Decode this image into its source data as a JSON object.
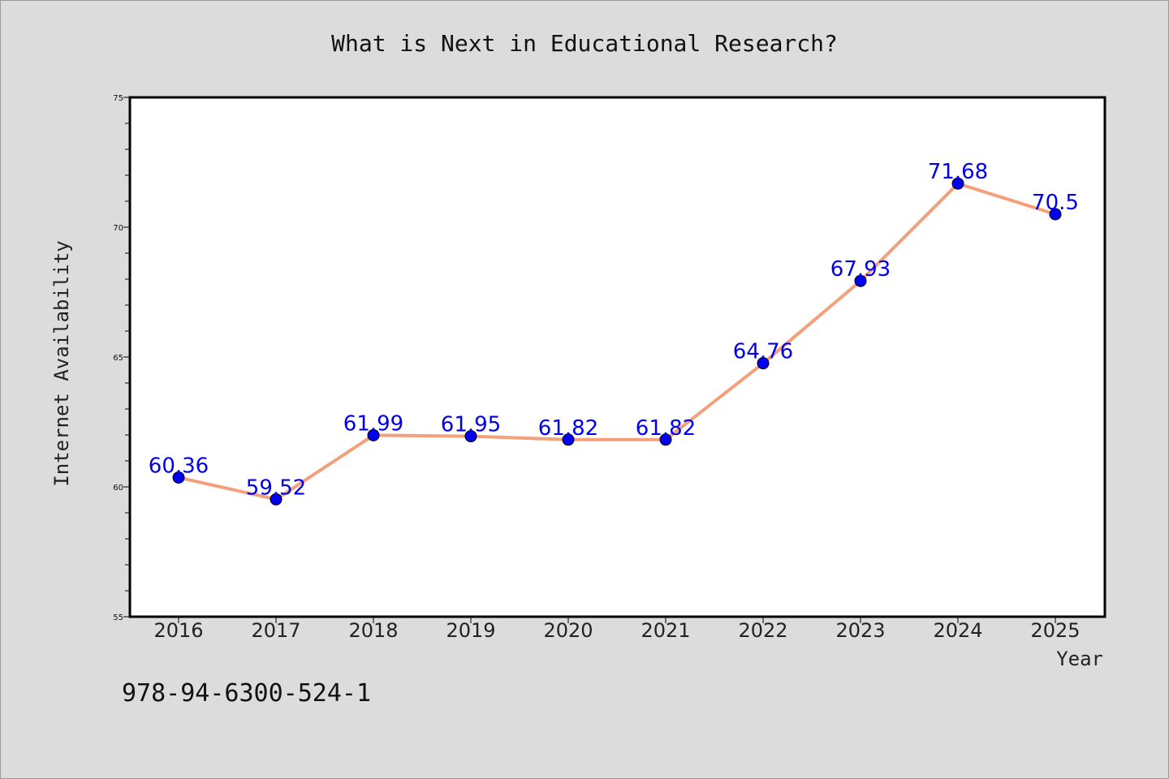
{
  "chart_data": {
    "type": "line",
    "title": "What is Next in Educational Research?",
    "xlabel": "Year",
    "ylabel": "Internet Availability",
    "categories": [
      "2016",
      "2017",
      "2018",
      "2019",
      "2020",
      "2021",
      "2022",
      "2023",
      "2024",
      "2025"
    ],
    "series": [
      {
        "values": [
          60.36,
          59.52,
          61.99,
          61.95,
          61.82,
          61.82,
          64.76,
          67.93,
          71.68,
          70.5
        ],
        "labels": [
          "60.36",
          "59.52",
          "61.99",
          "61.95",
          "61.82",
          "61.82",
          "64.76",
          "67.93",
          "71.68",
          "70.5"
        ]
      }
    ],
    "ylim": [
      55,
      75
    ],
    "yticks": [
      "55",
      "60",
      "65",
      "70",
      "75"
    ],
    "grid": false,
    "colors": {
      "line": "#f4a07a",
      "marker": "#0000ee",
      "label": "#0000ee",
      "plot_bg": "#ffffff",
      "figure_bg": "#dcdcdc"
    }
  },
  "footer": {
    "isbn": "978-94-6300-524-1"
  }
}
